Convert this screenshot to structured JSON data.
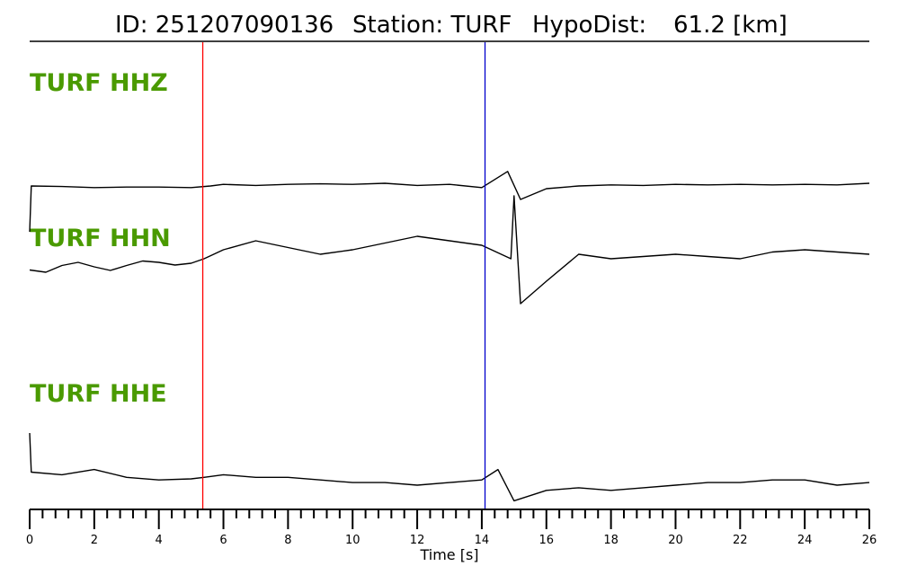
{
  "header": {
    "id_label": "ID: 251207090136",
    "station_label": "Station: TURF",
    "dist_label": "HypoDist:",
    "dist_value": "61.2 [km]"
  },
  "colors": {
    "channel_label": "#4a9a00",
    "p_pick": "#ff0000",
    "s_pick": "#0000cc",
    "trace": "#000000"
  },
  "chart_data": {
    "type": "line",
    "xlabel": "Time [s]",
    "xlim": [
      0,
      26
    ],
    "x_major_ticks": [
      0,
      2,
      4,
      6,
      8,
      10,
      12,
      14,
      16,
      18,
      20,
      22,
      24,
      26
    ],
    "x_minor_step": 0.4,
    "picks": [
      {
        "phase": "P",
        "time": 5.36,
        "color": "#ff0000"
      },
      {
        "phase": "S",
        "time": 14.1,
        "color": "#0000cc"
      }
    ],
    "channels": [
      {
        "name": "TURF HHZ",
        "series": [
          [
            0,
            -1.0
          ],
          [
            0.05,
            -0.15
          ],
          [
            1,
            -0.16
          ],
          [
            2,
            -0.18
          ],
          [
            3,
            -0.17
          ],
          [
            4,
            -0.17
          ],
          [
            5,
            -0.18
          ],
          [
            5.6,
            -0.15
          ],
          [
            6,
            -0.12
          ],
          [
            7,
            -0.14
          ],
          [
            8,
            -0.12
          ],
          [
            9,
            -0.11
          ],
          [
            10,
            -0.12
          ],
          [
            11,
            -0.1
          ],
          [
            12,
            -0.14
          ],
          [
            13,
            -0.12
          ],
          [
            14,
            -0.18
          ],
          [
            14.8,
            0.12
          ],
          [
            15.2,
            -0.4
          ],
          [
            16,
            -0.2
          ],
          [
            17,
            -0.15
          ],
          [
            18,
            -0.13
          ],
          [
            19,
            -0.14
          ],
          [
            20,
            -0.12
          ],
          [
            21,
            -0.13
          ],
          [
            22,
            -0.12
          ],
          [
            23,
            -0.13
          ],
          [
            24,
            -0.12
          ],
          [
            25,
            -0.13
          ],
          [
            26,
            -0.1
          ]
        ]
      },
      {
        "name": "TURF HHN",
        "series": [
          [
            0,
            -0.05
          ],
          [
            0.5,
            -0.1
          ],
          [
            1,
            0.05
          ],
          [
            1.5,
            0.12
          ],
          [
            2,
            0.02
          ],
          [
            2.5,
            -0.06
          ],
          [
            3,
            0.05
          ],
          [
            3.5,
            0.15
          ],
          [
            4,
            0.12
          ],
          [
            4.5,
            0.06
          ],
          [
            5,
            0.1
          ],
          [
            5.4,
            0.2
          ],
          [
            6,
            0.4
          ],
          [
            7,
            0.6
          ],
          [
            8,
            0.45
          ],
          [
            9,
            0.3
          ],
          [
            10,
            0.4
          ],
          [
            11,
            0.55
          ],
          [
            12,
            0.7
          ],
          [
            13,
            0.6
          ],
          [
            14,
            0.5
          ],
          [
            14.9,
            0.2
          ],
          [
            15,
            1.6
          ],
          [
            15.2,
            -0.8
          ],
          [
            16,
            -0.3
          ],
          [
            17,
            0.3
          ],
          [
            18,
            0.2
          ],
          [
            19,
            0.25
          ],
          [
            20,
            0.3
          ],
          [
            21,
            0.25
          ],
          [
            22,
            0.2
          ],
          [
            23,
            0.35
          ],
          [
            24,
            0.4
          ],
          [
            25,
            0.35
          ],
          [
            26,
            0.3
          ]
        ]
      },
      {
        "name": "TURF HHE",
        "series": [
          [
            0,
            1.0
          ],
          [
            0.05,
            0.25
          ],
          [
            1,
            0.2
          ],
          [
            2,
            0.3
          ],
          [
            3,
            0.15
          ],
          [
            4,
            0.1
          ],
          [
            5,
            0.12
          ],
          [
            5.4,
            0.15
          ],
          [
            6,
            0.2
          ],
          [
            7,
            0.15
          ],
          [
            8,
            0.15
          ],
          [
            9,
            0.1
          ],
          [
            10,
            0.05
          ],
          [
            11,
            0.05
          ],
          [
            12,
            0.0
          ],
          [
            13,
            0.05
          ],
          [
            14,
            0.1
          ],
          [
            14.5,
            0.3
          ],
          [
            15,
            -0.3
          ],
          [
            16,
            -0.1
          ],
          [
            17,
            -0.05
          ],
          [
            18,
            -0.1
          ],
          [
            19,
            -0.05
          ],
          [
            20,
            0.0
          ],
          [
            21,
            0.05
          ],
          [
            22,
            0.05
          ],
          [
            23,
            0.1
          ],
          [
            24,
            0.1
          ],
          [
            25,
            0.0
          ],
          [
            26,
            0.05
          ]
        ]
      }
    ]
  }
}
